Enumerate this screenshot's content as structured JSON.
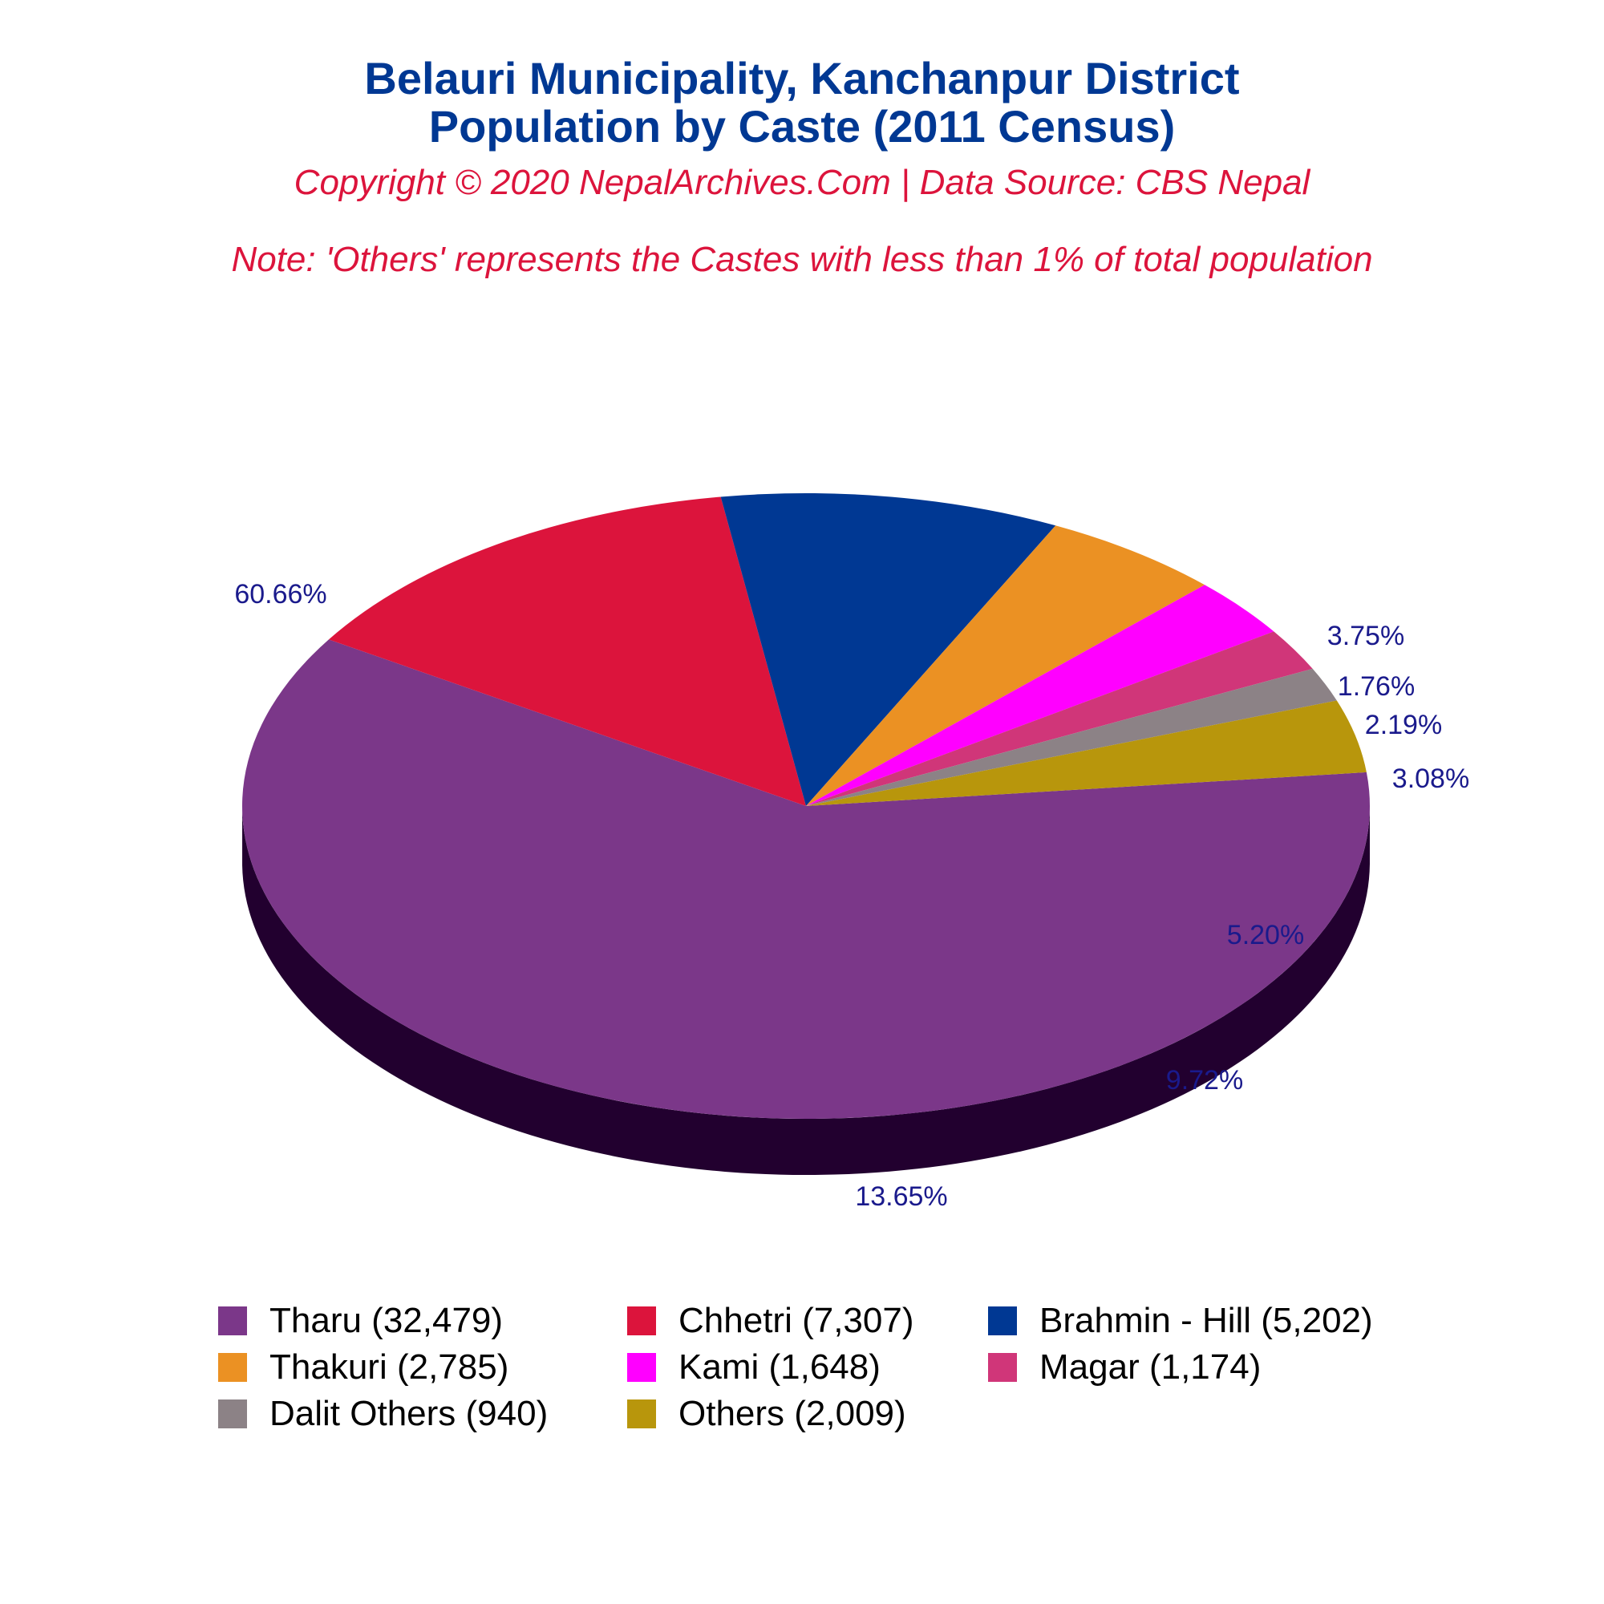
{
  "title_line1": "Belauri Municipality, Kanchanpur District",
  "title_line2": "Population by Caste (2011 Census)",
  "subtitle": "Copyright © 2020 NepalArchives.Com | Data Source: CBS Nepal",
  "note": "Note: 'Others' represents the Castes with less than 1% of total population",
  "chart_data": {
    "type": "pie",
    "style": "3d",
    "title": "Belauri Municipality, Kanchanpur District Population by Caste (2011 Census)",
    "slices": [
      {
        "label": "Tharu",
        "value": 32479,
        "percent_label": "60.66%",
        "legend_label": "Tharu (32,479)",
        "color": "#7b3789",
        "side_color": "#22002f"
      },
      {
        "label": "Chhetri",
        "value": 7307,
        "percent_label": "13.65%",
        "legend_label": "Chhetri (7,307)",
        "color": "#dc143c",
        "side_color": "#850000"
      },
      {
        "label": "Brahmin - Hill",
        "value": 5202,
        "percent_label": "9.72%",
        "legend_label": "Brahmin - Hill (5,202)",
        "color": "#003893",
        "side_color": "#000040"
      },
      {
        "label": "Thakuri",
        "value": 2785,
        "percent_label": "5.20%",
        "legend_label": "Thakuri (2,785)",
        "color": "#eb9123",
        "side_color": "#963c00"
      },
      {
        "label": "Kami",
        "value": 1648,
        "percent_label": "3.08%",
        "legend_label": "Kami (1,648)",
        "color": "#ff00ff",
        "side_color": "#aa00aa"
      },
      {
        "label": "Magar",
        "value": 1174,
        "percent_label": "2.19%",
        "legend_label": "Magar (1,174)",
        "color": "#d03679",
        "side_color": "#7b0024"
      },
      {
        "label": "Dalit Others",
        "value": 940,
        "percent_label": "1.76%",
        "legend_label": "Dalit Others (940)",
        "color": "#8c8286",
        "side_color": "#372d31"
      },
      {
        "label": "Others",
        "value": 2009,
        "percent_label": "3.75%",
        "legend_label": "Others (2,009)",
        "color": "#b8960c",
        "side_color": "#634100"
      }
    ],
    "legend_placement": "bottom"
  }
}
